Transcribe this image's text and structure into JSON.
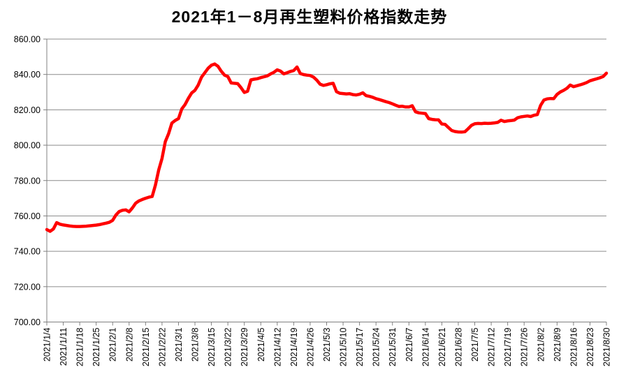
{
  "chart_data": {
    "type": "line",
    "title": "2021年1－8月再生塑料价格指数走势",
    "xlabel": "",
    "ylabel": "",
    "ylim": [
      700,
      860
    ],
    "y_tick_step": 20,
    "y_ticks": [
      "700.00",
      "720.00",
      "740.00",
      "760.00",
      "780.00",
      "800.00",
      "820.00",
      "840.00",
      "860.00"
    ],
    "x_labels": [
      "2021/1/4",
      "2021/1/11",
      "2021/1/18",
      "2021/1/25",
      "2021/2/1",
      "2021/2/8",
      "2021/2/15",
      "2021/2/22",
      "2021/3/1",
      "2021/3/8",
      "2021/3/15",
      "2021/3/22",
      "2021/3/29",
      "2021/4/5",
      "2021/4/12",
      "2021/4/19",
      "2021/4/26",
      "2021/5/3",
      "2021/5/10",
      "2021/5/17",
      "2021/5/24",
      "2021/5/31",
      "2021/6/7",
      "2021/6/14",
      "2021/6/21",
      "2021/6/28",
      "2021/7/5",
      "2021/7/12",
      "2021/7/19",
      "2021/7/26",
      "2021/8/2",
      "2021/8/9",
      "2021/8/16",
      "2021/8/23",
      "2021/8/30"
    ],
    "points_per_label": 5,
    "grid": true,
    "legend_position": "none",
    "colors": {
      "line": "#FF0000",
      "grid": "#8C8C8C",
      "axis": "#808080",
      "text": "#000000",
      "background": "#FFFFFF"
    },
    "series": [
      {
        "color": "#FF0000",
        "values": [
          752.3,
          751.3,
          752.6,
          756.2,
          755.3,
          754.9,
          754.6,
          754.3,
          754.1,
          754.0,
          754.0,
          754.1,
          754.2,
          754.4,
          754.6,
          754.8,
          755.1,
          755.5,
          755.9,
          756.4,
          757.5,
          760.5,
          762.5,
          763.2,
          763.4,
          762.3,
          764.5,
          767.2,
          768.5,
          769.3,
          770.0,
          770.6,
          771.0,
          777.5,
          786.0,
          792.5,
          802.0,
          806.5,
          812.5,
          814.0,
          815.0,
          820.5,
          823.0,
          826.5,
          829.5,
          831.0,
          834.0,
          838.5,
          841.0,
          843.5,
          845.2,
          845.9,
          844.6,
          841.8,
          839.6,
          838.8,
          835.2,
          835.0,
          834.8,
          832.5,
          829.8,
          830.5,
          836.9,
          837.3,
          837.6,
          838.2,
          838.7,
          839.2,
          840.3,
          841.2,
          842.6,
          841.9,
          840.3,
          841.0,
          841.7,
          842.2,
          844.2,
          840.5,
          839.9,
          839.6,
          839.4,
          838.5,
          836.8,
          834.5,
          833.8,
          834.2,
          834.7,
          835.0,
          830.3,
          829.4,
          829.2,
          829.0,
          829.1,
          828.6,
          828.4,
          828.8,
          829.6,
          828.0,
          827.6,
          827.1,
          826.3,
          825.8,
          825.2,
          824.6,
          824.1,
          823.4,
          822.6,
          821.9,
          822.0,
          821.6,
          821.6,
          822.3,
          818.9,
          818.3,
          818.1,
          817.9,
          815.0,
          814.6,
          814.4,
          814.3,
          812.0,
          811.8,
          810.0,
          808.3,
          807.7,
          807.5,
          807.4,
          807.6,
          809.3,
          811.2,
          812.1,
          812.3,
          812.2,
          812.4,
          812.3,
          812.4,
          812.6,
          812.9,
          814.1,
          813.4,
          813.7,
          813.9,
          814.2,
          815.5,
          816.0,
          816.3,
          816.5,
          816.2,
          816.9,
          817.3,
          822.5,
          825.5,
          826.2,
          826.4,
          826.3,
          828.7,
          830.1,
          831.0,
          832.2,
          834.0,
          833.1,
          833.6,
          834.1,
          834.7,
          835.4,
          836.4,
          837.0,
          837.5,
          838.1,
          838.8,
          840.7
        ]
      }
    ]
  }
}
